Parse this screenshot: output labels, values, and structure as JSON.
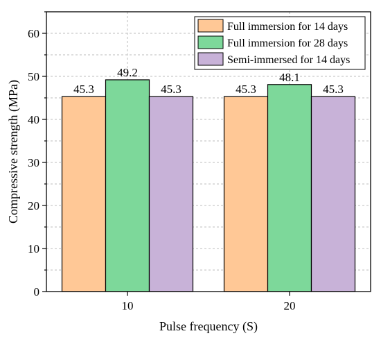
{
  "chart_data": {
    "type": "bar",
    "categories": [
      "10",
      "20"
    ],
    "series": [
      {
        "name": "Full immersion for 14 days",
        "values": [
          45.3,
          45.3
        ],
        "color": "#FFC896"
      },
      {
        "name": "Full immersion for 28 days",
        "values": [
          49.2,
          48.1
        ],
        "color": "#7DD89A"
      },
      {
        "name": "Semi-immersed for 14 days",
        "values": [
          45.3,
          45.3
        ],
        "color": "#C8B2D8"
      }
    ],
    "data_labels": [
      [
        "45.3",
        "49.2",
        "45.3"
      ],
      [
        "45.3",
        "48.1",
        "45.3"
      ]
    ],
    "xlabel": "Pulse frequency (S)",
    "ylabel": "Compressive strength (MPa)",
    "ylim": [
      0,
      65
    ],
    "yticks": [
      0,
      10,
      20,
      30,
      40,
      50,
      60
    ],
    "yminor_step": 5,
    "grid": true,
    "legend_position": "top-right"
  }
}
